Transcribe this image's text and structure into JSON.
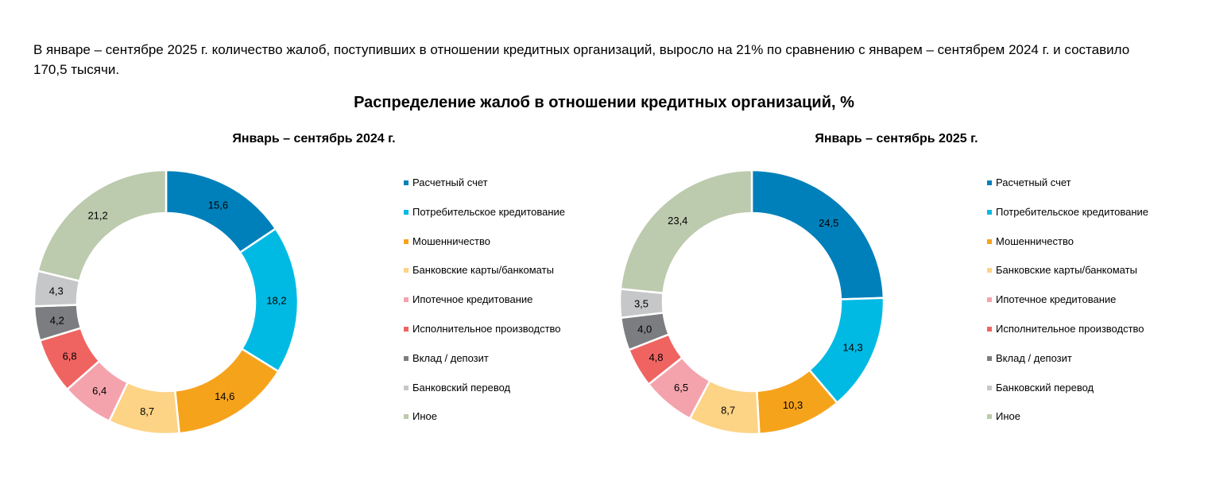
{
  "intro_text": "В январе – сентябре 2025 г. количество жалоб, поступивших в отношении кредитных организаций, выросло на 21% по сравнению с январем – сентябрем 2024 г. и составило 170,5 тысячи.",
  "chart_data": {
    "type": "pie",
    "title": "Распределение жалоб в отношении кредитных организаций, %",
    "categories": [
      "Расчетный счет",
      "Потребительское кредитование",
      "Мошенничество",
      "Банковские карты/банкоматы",
      "Ипотечное кредитование",
      "Исполнительное производство",
      "Вклад / депозит",
      "Банковский перевод",
      "Иное"
    ],
    "colors": [
      "#0080BA",
      "#00BAE4",
      "#F6A31C",
      "#FDD385",
      "#F4A3AD",
      "#EF6461",
      "#7B7D80",
      "#C6C7C9",
      "#BCCAAD"
    ],
    "legend_position": "right",
    "charts": [
      {
        "subtitle": "Январь – сентябрь 2024 г.",
        "values": [
          15.6,
          18.2,
          14.6,
          8.7,
          6.4,
          6.8,
          4.2,
          4.3,
          21.2
        ],
        "labels": [
          "15,6",
          "18,2",
          "14,6",
          "8,7",
          "6,4",
          "6,8",
          "4,2",
          "4,3",
          "21,2"
        ]
      },
      {
        "subtitle": "Январь – сентябрь 2025 г.",
        "values": [
          24.5,
          14.3,
          10.3,
          8.7,
          6.5,
          4.8,
          4.0,
          3.5,
          23.4
        ],
        "labels": [
          "24,5",
          "14,3",
          "10,3",
          "8,7",
          "6,5",
          "4,8",
          "4,0",
          "3,5",
          "23,4"
        ]
      }
    ]
  }
}
